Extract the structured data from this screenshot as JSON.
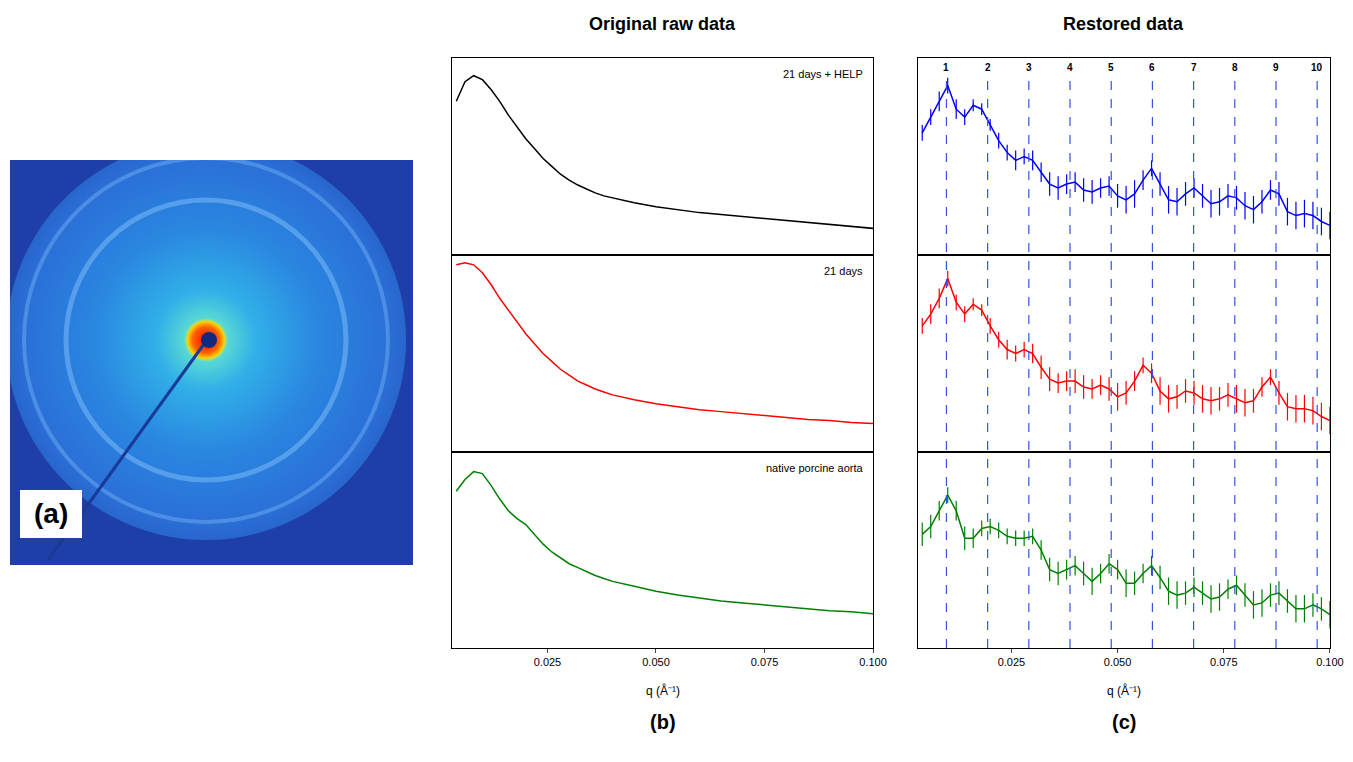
{
  "figure": {
    "panels": [
      {
        "label": "(a)"
      },
      {
        "label": "(b)",
        "title": "Original raw data"
      },
      {
        "label": "(c)",
        "title": "Restored data"
      }
    ]
  },
  "chart_data": [
    {
      "type": "line",
      "annotation": "21 days + HELP",
      "color": "#000000",
      "x": [
        0.004,
        0.006,
        0.008,
        0.01,
        0.012,
        0.014,
        0.016,
        0.018,
        0.02,
        0.022,
        0.024,
        0.026,
        0.028,
        0.03,
        0.032,
        0.034,
        0.036,
        0.038,
        0.04,
        0.045,
        0.05,
        0.055,
        0.06,
        0.065,
        0.07,
        0.075,
        0.08,
        0.085,
        0.09,
        0.095,
        0.1
      ],
      "values": [
        0.78,
        0.88,
        0.91,
        0.89,
        0.84,
        0.78,
        0.71,
        0.65,
        0.59,
        0.54,
        0.49,
        0.45,
        0.41,
        0.38,
        0.355,
        0.335,
        0.315,
        0.3,
        0.29,
        0.265,
        0.245,
        0.23,
        0.215,
        0.205,
        0.195,
        0.185,
        0.175,
        0.165,
        0.155,
        0.145,
        0.135
      ],
      "xlim": [
        0.003,
        0.1
      ],
      "ylim": [
        0,
        1
      ],
      "tick_labels": false
    },
    {
      "type": "line",
      "annotation": "21 days",
      "color": "#ff0000",
      "x": [
        0.004,
        0.006,
        0.008,
        0.01,
        0.012,
        0.014,
        0.016,
        0.018,
        0.02,
        0.022,
        0.024,
        0.026,
        0.028,
        0.03,
        0.032,
        0.034,
        0.036,
        0.038,
        0.04,
        0.045,
        0.05,
        0.055,
        0.06,
        0.065,
        0.07,
        0.075,
        0.08,
        0.085,
        0.09,
        0.095,
        0.1
      ],
      "values": [
        0.95,
        0.96,
        0.95,
        0.91,
        0.85,
        0.78,
        0.72,
        0.66,
        0.6,
        0.55,
        0.5,
        0.46,
        0.42,
        0.39,
        0.36,
        0.34,
        0.32,
        0.305,
        0.29,
        0.265,
        0.245,
        0.23,
        0.215,
        0.205,
        0.195,
        0.185,
        0.175,
        0.165,
        0.16,
        0.15,
        0.145
      ],
      "xlim": [
        0.003,
        0.1
      ],
      "ylim": [
        0,
        1
      ],
      "tick_labels": false
    },
    {
      "type": "line",
      "annotation": "native porcine aorta",
      "color": "#008000",
      "x": [
        0.004,
        0.006,
        0.008,
        0.01,
        0.012,
        0.014,
        0.016,
        0.018,
        0.02,
        0.022,
        0.024,
        0.026,
        0.028,
        0.03,
        0.032,
        0.034,
        0.036,
        0.038,
        0.04,
        0.045,
        0.05,
        0.055,
        0.06,
        0.065,
        0.07,
        0.075,
        0.08,
        0.085,
        0.09,
        0.095,
        0.1
      ],
      "values": [
        0.8,
        0.86,
        0.9,
        0.89,
        0.83,
        0.76,
        0.7,
        0.66,
        0.63,
        0.58,
        0.53,
        0.49,
        0.46,
        0.43,
        0.41,
        0.39,
        0.37,
        0.355,
        0.34,
        0.315,
        0.29,
        0.27,
        0.255,
        0.24,
        0.23,
        0.22,
        0.21,
        0.2,
        0.19,
        0.185,
        0.175
      ],
      "xlim": [
        0.003,
        0.1
      ],
      "ylim": [
        0,
        1
      ],
      "tick_labels": "x",
      "x_label": "q (Å⁻¹)",
      "xticks": [
        0.025,
        {
          "value": 0.05,
          "label": "0.050"
        },
        0.075,
        {
          "value": 0.1,
          "label": "0.100"
        }
      ]
    },
    {
      "type": "line",
      "color": "#0000ff",
      "x": [
        0.004,
        0.006,
        0.008,
        0.01,
        0.012,
        0.014,
        0.016,
        0.018,
        0.02,
        0.022,
        0.024,
        0.026,
        0.028,
        0.03,
        0.032,
        0.034,
        0.036,
        0.038,
        0.04,
        0.042,
        0.044,
        0.046,
        0.048,
        0.05,
        0.052,
        0.054,
        0.056,
        0.058,
        0.06,
        0.062,
        0.064,
        0.066,
        0.068,
        0.07,
        0.072,
        0.074,
        0.076,
        0.078,
        0.08,
        0.082,
        0.084,
        0.086,
        0.088,
        0.09,
        0.092,
        0.094,
        0.096,
        0.098,
        0.1
      ],
      "values": [
        0.62,
        0.7,
        0.78,
        0.86,
        0.74,
        0.7,
        0.76,
        0.74,
        0.66,
        0.58,
        0.52,
        0.48,
        0.5,
        0.48,
        0.42,
        0.36,
        0.34,
        0.36,
        0.37,
        0.33,
        0.32,
        0.34,
        0.35,
        0.3,
        0.28,
        0.31,
        0.38,
        0.44,
        0.36,
        0.28,
        0.27,
        0.31,
        0.34,
        0.3,
        0.26,
        0.27,
        0.3,
        0.29,
        0.25,
        0.23,
        0.27,
        0.33,
        0.31,
        0.22,
        0.2,
        0.21,
        0.2,
        0.17,
        0.15
      ],
      "errors": [
        0.04,
        0.04,
        0.05,
        0.04,
        0.05,
        0.04,
        0.03,
        0.03,
        0.03,
        0.04,
        0.04,
        0.05,
        0.04,
        0.05,
        0.05,
        0.06,
        0.06,
        0.05,
        0.05,
        0.06,
        0.06,
        0.05,
        0.05,
        0.06,
        0.07,
        0.07,
        0.05,
        0.04,
        0.06,
        0.07,
        0.07,
        0.06,
        0.05,
        0.06,
        0.07,
        0.07,
        0.06,
        0.06,
        0.07,
        0.07,
        0.06,
        0.05,
        0.06,
        0.07,
        0.07,
        0.07,
        0.07,
        0.07,
        0.07
      ],
      "xlim": [
        0.003,
        0.1
      ],
      "ylim": [
        0,
        1
      ],
      "tick_labels": false,
      "orders": [
        1,
        2,
        3,
        4,
        5,
        6,
        7,
        8,
        9,
        10
      ],
      "order_x": [
        0.0097,
        0.0194,
        0.0291,
        0.0388,
        0.0485,
        0.0582,
        0.0679,
        0.0776,
        0.0873,
        0.097
      ],
      "order_color": "#3355dd",
      "line_style": "dashed"
    },
    {
      "type": "line",
      "color": "#ff0000",
      "x": [
        0.004,
        0.006,
        0.008,
        0.01,
        0.012,
        0.014,
        0.016,
        0.018,
        0.02,
        0.022,
        0.024,
        0.026,
        0.028,
        0.03,
        0.032,
        0.034,
        0.036,
        0.038,
        0.04,
        0.042,
        0.044,
        0.046,
        0.048,
        0.05,
        0.052,
        0.054,
        0.056,
        0.058,
        0.06,
        0.062,
        0.064,
        0.066,
        0.068,
        0.07,
        0.072,
        0.074,
        0.076,
        0.078,
        0.08,
        0.082,
        0.084,
        0.086,
        0.088,
        0.09,
        0.092,
        0.094,
        0.096,
        0.098,
        0.1
      ],
      "values": [
        0.64,
        0.7,
        0.78,
        0.88,
        0.76,
        0.7,
        0.75,
        0.72,
        0.64,
        0.57,
        0.52,
        0.5,
        0.52,
        0.5,
        0.43,
        0.37,
        0.35,
        0.36,
        0.36,
        0.33,
        0.32,
        0.34,
        0.32,
        0.28,
        0.3,
        0.36,
        0.44,
        0.4,
        0.31,
        0.27,
        0.28,
        0.31,
        0.3,
        0.27,
        0.26,
        0.27,
        0.29,
        0.27,
        0.25,
        0.26,
        0.33,
        0.38,
        0.3,
        0.23,
        0.22,
        0.22,
        0.21,
        0.18,
        0.16
      ],
      "errors": [
        0.04,
        0.05,
        0.05,
        0.04,
        0.04,
        0.04,
        0.03,
        0.03,
        0.04,
        0.04,
        0.05,
        0.04,
        0.04,
        0.05,
        0.06,
        0.06,
        0.05,
        0.05,
        0.06,
        0.06,
        0.05,
        0.05,
        0.06,
        0.07,
        0.06,
        0.05,
        0.04,
        0.05,
        0.07,
        0.07,
        0.06,
        0.06,
        0.06,
        0.07,
        0.07,
        0.06,
        0.06,
        0.07,
        0.07,
        0.06,
        0.05,
        0.04,
        0.06,
        0.07,
        0.07,
        0.07,
        0.07,
        0.07,
        0.07
      ],
      "xlim": [
        0.003,
        0.1
      ],
      "ylim": [
        0,
        1
      ],
      "tick_labels": false
    },
    {
      "type": "line",
      "color": "#008000",
      "x": [
        0.004,
        0.006,
        0.008,
        0.01,
        0.012,
        0.014,
        0.016,
        0.018,
        0.02,
        0.022,
        0.024,
        0.026,
        0.028,
        0.03,
        0.032,
        0.034,
        0.036,
        0.038,
        0.04,
        0.042,
        0.044,
        0.046,
        0.048,
        0.05,
        0.052,
        0.054,
        0.056,
        0.058,
        0.06,
        0.062,
        0.064,
        0.066,
        0.068,
        0.07,
        0.072,
        0.074,
        0.076,
        0.078,
        0.08,
        0.082,
        0.084,
        0.086,
        0.088,
        0.09,
        0.092,
        0.094,
        0.096,
        0.098,
        0.1
      ],
      "values": [
        0.58,
        0.62,
        0.7,
        0.78,
        0.7,
        0.56,
        0.56,
        0.61,
        0.62,
        0.6,
        0.57,
        0.56,
        0.56,
        0.57,
        0.5,
        0.4,
        0.38,
        0.4,
        0.42,
        0.38,
        0.34,
        0.38,
        0.43,
        0.4,
        0.33,
        0.33,
        0.38,
        0.42,
        0.36,
        0.29,
        0.27,
        0.28,
        0.31,
        0.28,
        0.25,
        0.26,
        0.3,
        0.32,
        0.27,
        0.22,
        0.23,
        0.27,
        0.28,
        0.24,
        0.2,
        0.2,
        0.22,
        0.2,
        0.17
      ],
      "errors": [
        0.06,
        0.06,
        0.05,
        0.04,
        0.05,
        0.06,
        0.05,
        0.04,
        0.04,
        0.04,
        0.04,
        0.04,
        0.04,
        0.04,
        0.05,
        0.06,
        0.06,
        0.05,
        0.05,
        0.06,
        0.07,
        0.05,
        0.05,
        0.05,
        0.07,
        0.06,
        0.05,
        0.05,
        0.06,
        0.07,
        0.07,
        0.06,
        0.05,
        0.06,
        0.07,
        0.07,
        0.05,
        0.05,
        0.06,
        0.07,
        0.07,
        0.06,
        0.06,
        0.06,
        0.07,
        0.07,
        0.06,
        0.06,
        0.07
      ],
      "xlim": [
        0.003,
        0.1
      ],
      "ylim": [
        0,
        1
      ],
      "tick_labels": "x",
      "x_label": "q (Å⁻¹)",
      "xticks": [
        0.025,
        {
          "value": 0.05,
          "label": "0.050"
        },
        0.075,
        {
          "value": 0.1,
          "label": "0.100"
        }
      ]
    }
  ]
}
